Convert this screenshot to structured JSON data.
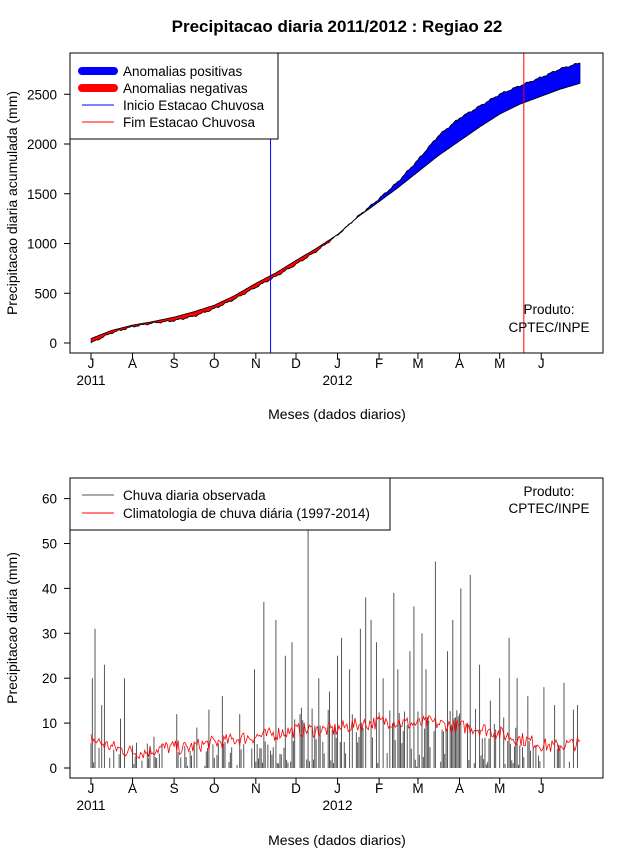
{
  "chart_data": [
    {
      "type": "area",
      "title": "Precipitacao diaria 2011/2012 : Regiao 22",
      "xlabel": "Meses (dados diarios)",
      "ylabel": "Precipitacao diaria acumulada (mm)",
      "ylim": [
        0,
        2800
      ],
      "yticks": [
        0,
        500,
        1000,
        1500,
        2000,
        2500
      ],
      "month_labels": [
        "J",
        "A",
        "S",
        "O",
        "N",
        "D",
        "J",
        "F",
        "M",
        "A",
        "M",
        "J"
      ],
      "month_day_index": [
        0,
        31,
        62,
        92,
        123,
        153,
        184,
        215,
        244,
        275,
        305,
        336
      ],
      "year_labels": [
        {
          "text": "2011",
          "month_index": 0
        },
        {
          "text": "2012",
          "month_index": 6
        }
      ],
      "series_day": [
        0,
        15,
        31,
        46,
        62,
        77,
        92,
        107,
        123,
        138,
        153,
        168,
        184,
        199,
        215,
        229,
        244,
        259,
        275,
        290,
        305,
        320,
        336,
        350,
        365
      ],
      "observed_cumulative": [
        0,
        100,
        165,
        200,
        225,
        270,
        345,
        440,
        560,
        670,
        790,
        920,
        1085,
        1270,
        1450,
        1620,
        1840,
        2080,
        2260,
        2380,
        2500,
        2585,
        2670,
        2755,
        2815
      ],
      "climatology_cumulative": [
        45,
        125,
        180,
        215,
        260,
        315,
        380,
        475,
        600,
        705,
        830,
        950,
        1090,
        1265,
        1420,
        1560,
        1720,
        1880,
        2030,
        2170,
        2300,
        2400,
        2480,
        2550,
        2610
      ],
      "rainy_season_start_day": 134,
      "rainy_season_end_day": 323,
      "legend": [
        {
          "label": "Anomalias positivas",
          "color": "#0000ff",
          "style": "thick"
        },
        {
          "label": "Anomalias negativas",
          "color": "#ff0000",
          "style": "thick"
        },
        {
          "label": "Inicio Estacao Chuvosa",
          "color": "#0000ff",
          "style": "thin"
        },
        {
          "label": "Fim Estacao Chuvosa",
          "color": "#ff0000",
          "style": "thin"
        }
      ],
      "annotation": [
        "Produto:",
        "CPTEC/INPE"
      ]
    },
    {
      "type": "bar",
      "xlabel": "Meses (dados diarios)",
      "ylabel": "Precipitacao diaria (mm)",
      "ylim": [
        0,
        65
      ],
      "yticks": [
        0,
        10,
        20,
        30,
        40,
        50,
        60
      ],
      "month_labels": [
        "J",
        "A",
        "S",
        "O",
        "N",
        "D",
        "J",
        "F",
        "M",
        "A",
        "M",
        "J"
      ],
      "year_labels": [
        {
          "text": "2011",
          "month_index": 0
        },
        {
          "text": "2012",
          "month_index": 6
        }
      ],
      "observed_daily_peaks": [
        {
          "day": 1,
          "value": 20
        },
        {
          "day": 3,
          "value": 31
        },
        {
          "day": 8,
          "value": 14
        },
        {
          "day": 10,
          "value": 23
        },
        {
          "day": 22,
          "value": 11
        },
        {
          "day": 25,
          "value": 20
        },
        {
          "day": 47,
          "value": 7
        },
        {
          "day": 64,
          "value": 12
        },
        {
          "day": 79,
          "value": 9
        },
        {
          "day": 88,
          "value": 13
        },
        {
          "day": 98,
          "value": 16
        },
        {
          "day": 111,
          "value": 12
        },
        {
          "day": 122,
          "value": 22
        },
        {
          "day": 129,
          "value": 37
        },
        {
          "day": 138,
          "value": 33
        },
        {
          "day": 145,
          "value": 25
        },
        {
          "day": 150,
          "value": 28
        },
        {
          "day": 156,
          "value": 12
        },
        {
          "day": 162,
          "value": 55
        },
        {
          "day": 170,
          "value": 20
        },
        {
          "day": 178,
          "value": 17
        },
        {
          "day": 184,
          "value": 25
        },
        {
          "day": 187,
          "value": 29
        },
        {
          "day": 193,
          "value": 22
        },
        {
          "day": 201,
          "value": 31
        },
        {
          "day": 205,
          "value": 38
        },
        {
          "day": 209,
          "value": 33
        },
        {
          "day": 213,
          "value": 28
        },
        {
          "day": 218,
          "value": 20
        },
        {
          "day": 226,
          "value": 39
        },
        {
          "day": 229,
          "value": 22
        },
        {
          "day": 238,
          "value": 26
        },
        {
          "day": 241,
          "value": 36
        },
        {
          "day": 247,
          "value": 30
        },
        {
          "day": 250,
          "value": 22
        },
        {
          "day": 257,
          "value": 46
        },
        {
          "day": 266,
          "value": 26
        },
        {
          "day": 270,
          "value": 33
        },
        {
          "day": 276,
          "value": 40
        },
        {
          "day": 283,
          "value": 43
        },
        {
          "day": 290,
          "value": 23
        },
        {
          "day": 298,
          "value": 15
        },
        {
          "day": 305,
          "value": 20
        },
        {
          "day": 312,
          "value": 29
        },
        {
          "day": 318,
          "value": 20
        },
        {
          "day": 326,
          "value": 16
        },
        {
          "day": 338,
          "value": 18
        },
        {
          "day": 346,
          "value": 14
        },
        {
          "day": 353,
          "value": 19
        },
        {
          "day": 360,
          "value": 13
        },
        {
          "day": 363,
          "value": 14
        }
      ],
      "climatology_daily": [
        6.5,
        5.2,
        4.3,
        3.6,
        3.5,
        4.4,
        4.6,
        4.4,
        5.1,
        5.6,
        6.0,
        6.6,
        7.0,
        7.3,
        8.0,
        8.3,
        8.5,
        8.4,
        8.6,
        9.4,
        9.7,
        10.2,
        10.5,
        10.0,
        9.8,
        10.2,
        9.6,
        9.2,
        9.0,
        8.6,
        7.8,
        6.8,
        6.2,
        5.4,
        4.7,
        5.2,
        5.4
      ],
      "legend": [
        {
          "label": "Chuva diaria observada",
          "color": "#555555"
        },
        {
          "label": "Climatologia de chuva diária (1997-2014)",
          "color": "#ff0000"
        }
      ],
      "annotation": [
        "Produto:",
        "CPTEC/INPE"
      ]
    }
  ]
}
